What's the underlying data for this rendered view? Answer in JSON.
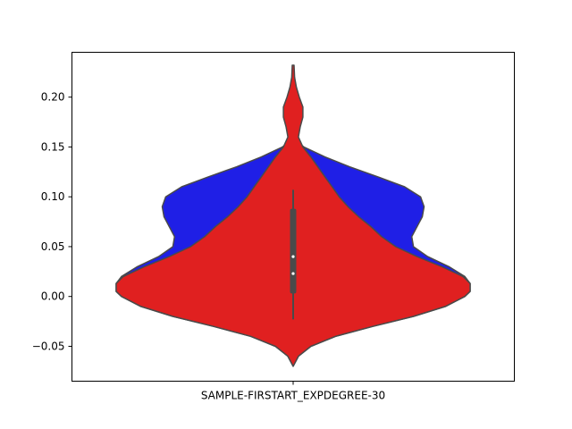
{
  "chart_data": {
    "type": "violin",
    "title": "",
    "xlabel": "",
    "ylabel": "",
    "categories": [
      "SAMPLE-FIRSTART_EXPDEGREE-30"
    ],
    "ylim": [
      -0.085,
      0.245
    ],
    "yticks": [
      -0.05,
      0.0,
      0.05,
      0.1,
      0.15,
      0.2
    ],
    "ytick_labels": [
      "−0.05",
      "0.00",
      "0.05",
      "0.10",
      "0.15",
      "0.20"
    ],
    "grid": false,
    "legend": "none",
    "series": [
      {
        "color": "#1f1fe6",
        "min": -0.07,
        "max": 0.232,
        "profile": [
          [
            -0.07,
            0.0
          ],
          [
            -0.06,
            0.03
          ],
          [
            -0.05,
            0.1
          ],
          [
            -0.04,
            0.24
          ],
          [
            -0.03,
            0.45
          ],
          [
            -0.02,
            0.68
          ],
          [
            -0.01,
            0.86
          ],
          [
            0.0,
            0.97
          ],
          [
            0.005,
            1.0
          ],
          [
            0.013,
            1.0
          ],
          [
            0.02,
            0.97
          ],
          [
            0.03,
            0.88
          ],
          [
            0.04,
            0.76
          ],
          [
            0.05,
            0.68
          ],
          [
            0.06,
            0.67
          ],
          [
            0.07,
            0.7
          ],
          [
            0.08,
            0.73
          ],
          [
            0.09,
            0.74
          ],
          [
            0.1,
            0.72
          ],
          [
            0.11,
            0.63
          ],
          [
            0.12,
            0.48
          ],
          [
            0.13,
            0.32
          ],
          [
            0.14,
            0.18
          ],
          [
            0.15,
            0.06
          ],
          [
            0.155,
            0.025
          ],
          [
            0.16,
            0.008
          ],
          [
            0.17,
            0.003
          ],
          [
            0.18,
            0.004
          ],
          [
            0.19,
            0.004
          ],
          [
            0.2,
            0.002
          ],
          [
            0.21,
            0.001
          ],
          [
            0.22,
            0.0
          ],
          [
            0.232,
            0.0
          ]
        ]
      },
      {
        "color": "#e02020",
        "min": -0.07,
        "max": 0.232,
        "profile": [
          [
            -0.07,
            0.0
          ],
          [
            -0.06,
            0.03
          ],
          [
            -0.05,
            0.1
          ],
          [
            -0.04,
            0.24
          ],
          [
            -0.03,
            0.45
          ],
          [
            -0.02,
            0.68
          ],
          [
            -0.01,
            0.86
          ],
          [
            0.0,
            0.97
          ],
          [
            0.005,
            1.0
          ],
          [
            0.013,
            1.0
          ],
          [
            0.02,
            0.96
          ],
          [
            0.03,
            0.84
          ],
          [
            0.04,
            0.7
          ],
          [
            0.05,
            0.58
          ],
          [
            0.06,
            0.5
          ],
          [
            0.07,
            0.44
          ],
          [
            0.08,
            0.37
          ],
          [
            0.09,
            0.31
          ],
          [
            0.1,
            0.26
          ],
          [
            0.11,
            0.22
          ],
          [
            0.12,
            0.18
          ],
          [
            0.13,
            0.14
          ],
          [
            0.14,
            0.1
          ],
          [
            0.15,
            0.055
          ],
          [
            0.16,
            0.03
          ],
          [
            0.17,
            0.04
          ],
          [
            0.18,
            0.055
          ],
          [
            0.19,
            0.055
          ],
          [
            0.2,
            0.035
          ],
          [
            0.21,
            0.018
          ],
          [
            0.22,
            0.008
          ],
          [
            0.232,
            0.005
          ]
        ]
      }
    ],
    "box": {
      "whisker_low": -0.023,
      "q1": 0.003,
      "median": 0.023,
      "mean": 0.04,
      "q3": 0.088,
      "whisker_high": 0.107
    }
  }
}
